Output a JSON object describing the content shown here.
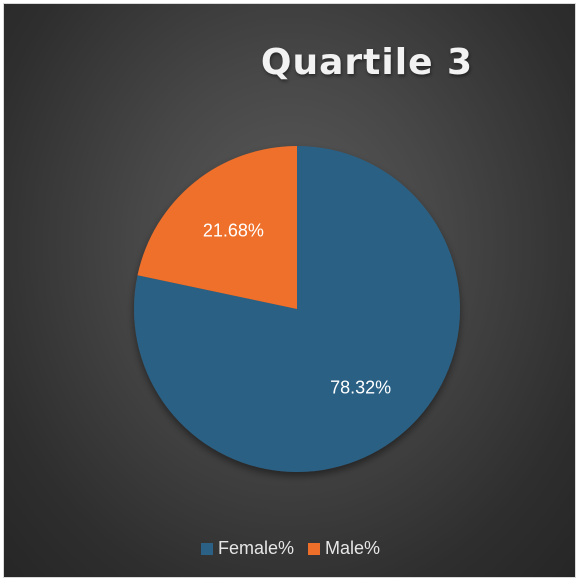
{
  "chart_data": {
    "type": "pie",
    "title": "Quartile 3",
    "categories": [
      "Female%",
      "Male%"
    ],
    "values": [
      78.32,
      21.68
    ],
    "data_labels": [
      "78.32%",
      "21.68%"
    ],
    "colors": [
      "#2b6184",
      "#ee6f2a"
    ],
    "start_angle_deg": 0,
    "direction": "clockwise",
    "legend_position": "bottom"
  },
  "legend": {
    "items": [
      {
        "label": "Female%",
        "color": "#2b6184"
      },
      {
        "label": "Male%",
        "color": "#ee6f2a"
      }
    ]
  }
}
